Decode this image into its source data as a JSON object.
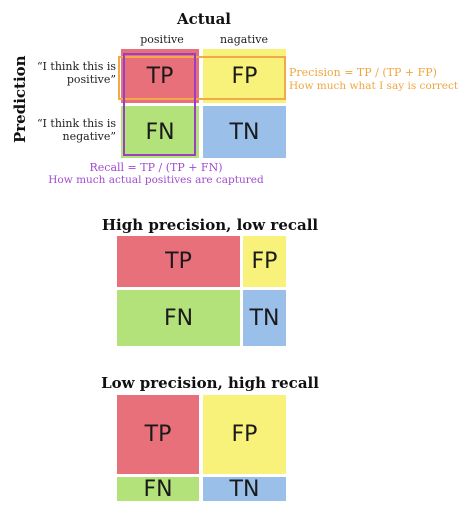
{
  "colors": {
    "tp": "#e8707a",
    "fp": "#f8f27a",
    "fn": "#b4e27a",
    "tn": "#9ac0ea",
    "precision_text": "#f0a640",
    "recall_text": "#a24bd2",
    "precision_box": "#f2a94a",
    "recall_box": "#9a3ec4"
  },
  "top": {
    "actual_title": "Actual",
    "col_positive": "positive",
    "col_negative": "nagative",
    "prediction_title": "Prediction",
    "row_positive": "“I think this is positive”",
    "row_negative": "“I think this is negative”",
    "cells": {
      "tp": "TP",
      "fp": "FP",
      "fn": "FN",
      "tn": "TN"
    },
    "precision_formula": "Precision = TP / (TP + FP)",
    "precision_desc": "How much what I say is correct",
    "recall_formula": "Recall = TP / (TP + FN)",
    "recall_desc": "How much actual positives are captured"
  },
  "middle": {
    "title": "High precision, low recall",
    "cells": {
      "tp": "TP",
      "fp": "FP",
      "fn": "FN",
      "tn": "TN"
    }
  },
  "bottom": {
    "title": "Low precision, high recall",
    "cells": {
      "tp": "TP",
      "fp": "FP",
      "fn": "FN",
      "tn": "TN"
    }
  }
}
